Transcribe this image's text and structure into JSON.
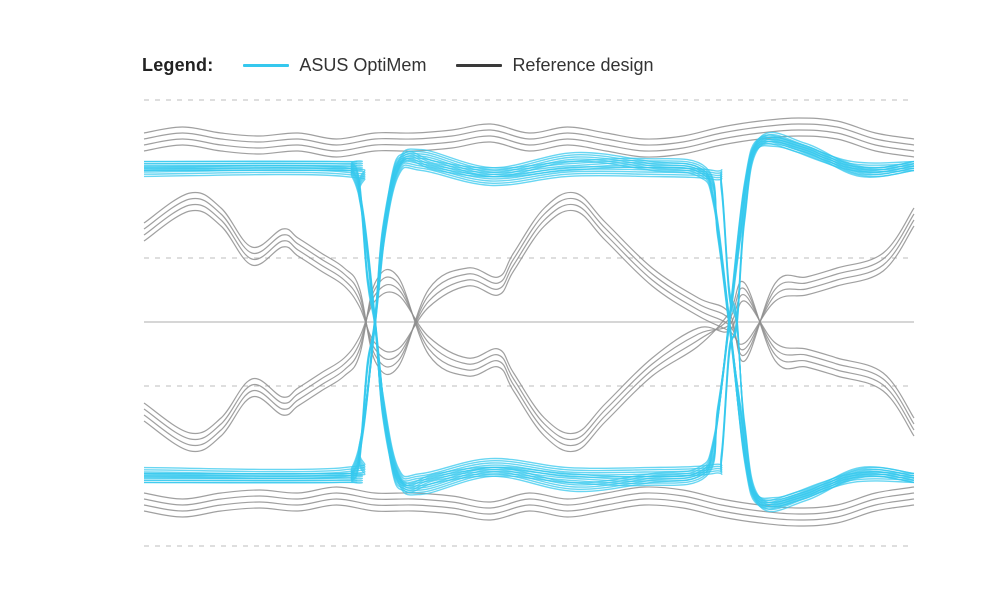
{
  "legend": {
    "title": "Legend:",
    "items": [
      {
        "label": "ASUS OptiMem",
        "color": "#35c8ee"
      },
      {
        "label": "Reference design",
        "color": "#3a3a3a"
      }
    ]
  },
  "chart_data": {
    "type": "line",
    "title": "",
    "xlabel": "",
    "ylabel": "",
    "grid": "dashed horizontal",
    "legend_position": "top-left",
    "series": [
      {
        "name": "ASUS OptiMem",
        "color": "#35c8ee",
        "traces": [
          {
            "x": [
              0,
              0.26,
              0.27,
              0.28,
              0.29,
              0.3,
              0.31,
              0.33,
              0.36,
              0.45,
              0.55,
              0.65,
              0.74,
              0.75,
              0.76,
              0.77,
              0.78,
              0.8,
              0.86,
              0.93,
              1.0
            ],
            "y": [
              0.52,
              0.52,
              0.515,
              0.45,
              0.15,
              0.0,
              -0.25,
              -0.5,
              -0.52,
              -0.47,
              -0.5,
              -0.5,
              -0.49,
              -0.45,
              -0.1,
              0.0,
              0.35,
              0.6,
              0.58,
              0.5,
              0.52
            ]
          },
          {
            "x": [
              0,
              0.26,
              0.27,
              0.28,
              0.29,
              0.3,
              0.31,
              0.33,
              0.36,
              0.45,
              0.55,
              0.65,
              0.74,
              0.75,
              0.76,
              0.77,
              0.78,
              0.8,
              0.86,
              0.93,
              1.0
            ],
            "y": [
              -0.52,
              -0.52,
              -0.515,
              -0.45,
              -0.15,
              0.0,
              0.25,
              0.5,
              0.52,
              0.47,
              0.5,
              0.5,
              0.49,
              0.45,
              0.1,
              0.0,
              -0.35,
              -0.6,
              -0.58,
              -0.5,
              -0.52
            ]
          },
          {
            "x": [
              0,
              0.25,
              0.27,
              0.285,
              0.3,
              0.31,
              0.33,
              0.36,
              0.45,
              0.55,
              0.65,
              0.73,
              0.745,
              0.76,
              0.775,
              0.79,
              0.82,
              0.88,
              0.94,
              1.0
            ],
            "y": [
              0.52,
              0.52,
              0.5,
              0.35,
              0.0,
              -0.3,
              -0.52,
              -0.56,
              -0.5,
              -0.52,
              -0.53,
              -0.5,
              -0.3,
              0.0,
              0.3,
              0.56,
              0.6,
              0.55,
              0.5,
              0.52
            ]
          },
          {
            "x": [
              0,
              0.25,
              0.27,
              0.285,
              0.3,
              0.31,
              0.33,
              0.36,
              0.45,
              0.55,
              0.65,
              0.73,
              0.745,
              0.76,
              0.775,
              0.79,
              0.82,
              0.88,
              0.94,
              1.0
            ],
            "y": [
              -0.52,
              -0.52,
              -0.5,
              -0.35,
              0.0,
              0.3,
              0.52,
              0.56,
              0.5,
              0.52,
              0.53,
              0.5,
              0.3,
              0.0,
              -0.3,
              -0.56,
              -0.6,
              -0.55,
              -0.5,
              -0.52
            ]
          },
          {
            "x": [
              0,
              0.26,
              0.28,
              0.3,
              0.32,
              0.34,
              0.38,
              0.46,
              0.56,
              0.66,
              0.72,
              0.74,
              0.76,
              0.78,
              0.8,
              0.85,
              0.92,
              1.0
            ],
            "y": [
              0.5,
              0.5,
              0.42,
              0.0,
              -0.45,
              -0.55,
              -0.52,
              -0.5,
              -0.55,
              -0.52,
              -0.5,
              -0.4,
              0.0,
              0.45,
              0.6,
              0.58,
              0.52,
              0.52
            ]
          },
          {
            "x": [
              0,
              0.26,
              0.28,
              0.3,
              0.32,
              0.34,
              0.38,
              0.46,
              0.56,
              0.66,
              0.72,
              0.74,
              0.76,
              0.78,
              0.8,
              0.85,
              0.92,
              1.0
            ],
            "y": [
              -0.5,
              -0.5,
              -0.42,
              0.0,
              0.45,
              0.55,
              0.52,
              0.5,
              0.55,
              0.52,
              0.5,
              0.4,
              0.0,
              -0.45,
              -0.6,
              -0.58,
              -0.52,
              -0.52
            ]
          }
        ]
      },
      {
        "name": "Reference design",
        "color": "#3a3a3a",
        "traces": [
          {
            "x": [
              0,
              0.06,
              0.1,
              0.14,
              0.18,
              0.2,
              0.23,
              0.26,
              0.28,
              0.3,
              0.33,
              0.37,
              0.42,
              0.46,
              0.48,
              0.52,
              0.56,
              0.6,
              0.66,
              0.72,
              0.76,
              0.78,
              0.82,
              0.86,
              0.9,
              0.96,
              1.0
            ],
            "y": [
              0.3,
              0.4,
              0.35,
              0.22,
              0.28,
              0.25,
              0.2,
              0.15,
              0.08,
              -0.1,
              -0.12,
              0.08,
              0.15,
              0.12,
              0.2,
              0.35,
              0.4,
              0.3,
              0.15,
              0.05,
              0.0,
              -0.1,
              0.1,
              0.12,
              0.15,
              0.2,
              0.35
            ]
          },
          {
            "x": [
              0,
              0.06,
              0.1,
              0.14,
              0.18,
              0.2,
              0.23,
              0.26,
              0.28,
              0.3,
              0.33,
              0.37,
              0.42,
              0.46,
              0.48,
              0.52,
              0.56,
              0.6,
              0.66,
              0.72,
              0.76,
              0.78,
              0.82,
              0.86,
              0.9,
              0.96,
              1.0
            ],
            "y": [
              -0.3,
              -0.4,
              -0.35,
              -0.22,
              -0.28,
              -0.25,
              -0.2,
              -0.15,
              -0.08,
              0.1,
              0.12,
              -0.08,
              -0.15,
              -0.12,
              -0.2,
              -0.35,
              -0.4,
              -0.3,
              -0.15,
              -0.05,
              0.0,
              0.1,
              -0.1,
              -0.12,
              -0.15,
              -0.2,
              -0.35
            ]
          },
          {
            "x": [
              0,
              0.05,
              0.1,
              0.15,
              0.2,
              0.25,
              0.3,
              0.35,
              0.4,
              0.45,
              0.5,
              0.55,
              0.6,
              0.65,
              0.7,
              0.75,
              0.8,
              0.85,
              0.9,
              0.95,
              1.0
            ],
            "y": [
              0.6,
              0.62,
              0.6,
              0.59,
              0.6,
              0.58,
              0.6,
              0.6,
              0.61,
              0.63,
              0.6,
              0.62,
              0.6,
              0.58,
              0.59,
              0.62,
              0.64,
              0.65,
              0.64,
              0.6,
              0.58
            ]
          },
          {
            "x": [
              0,
              0.05,
              0.1,
              0.15,
              0.2,
              0.25,
              0.3,
              0.35,
              0.4,
              0.45,
              0.5,
              0.55,
              0.6,
              0.65,
              0.7,
              0.75,
              0.8,
              0.85,
              0.9,
              0.95,
              1.0
            ],
            "y": [
              -0.6,
              -0.62,
              -0.6,
              -0.59,
              -0.6,
              -0.58,
              -0.6,
              -0.6,
              -0.61,
              -0.63,
              -0.6,
              -0.62,
              -0.6,
              -0.58,
              -0.59,
              -0.62,
              -0.64,
              -0.65,
              -0.64,
              -0.6,
              -0.58
            ]
          }
        ]
      }
    ]
  }
}
